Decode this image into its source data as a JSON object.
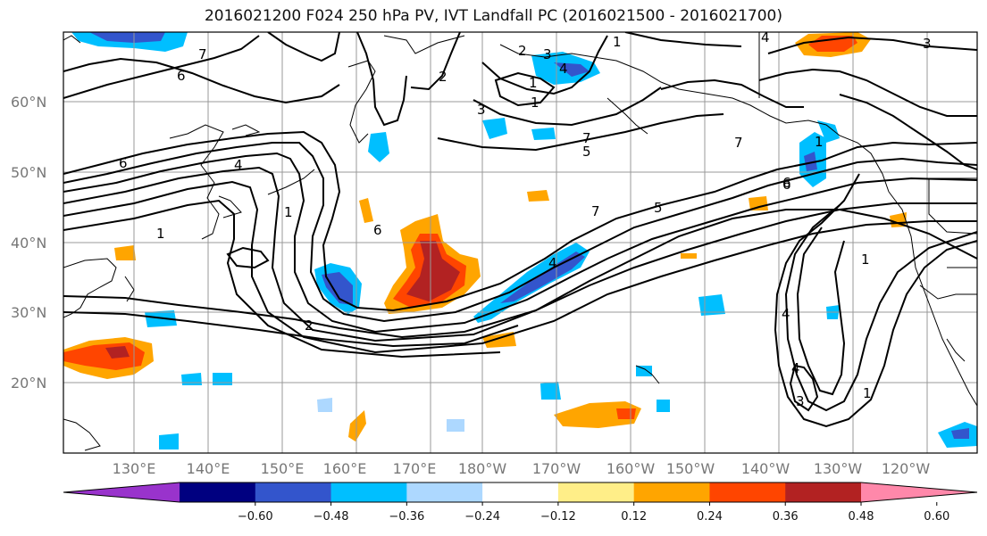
{
  "title": "2016021200 F024 250 hPa PV, IVT Landfall PC (2016021500 - 2016021700)",
  "lat_labels": [
    "60°N",
    "50°N",
    "40°N",
    "30°N",
    "20°N"
  ],
  "lon_labels": [
    "130°E",
    "140°E",
    "150°E",
    "160°E",
    "170°E",
    "180°W",
    "170°W",
    "160°W",
    "150°W",
    "140°W",
    "130°W",
    "120°W"
  ],
  "contour_labels": [
    "7",
    "6",
    "6",
    "4",
    "1",
    "1",
    "6",
    "2",
    "3",
    "2",
    "1",
    "1",
    "7",
    "5",
    "7",
    "6",
    "2",
    "3",
    "4",
    "4",
    "1",
    "4",
    "1",
    "7",
    "5",
    "6",
    "1",
    "4",
    "4",
    "3",
    "1",
    "3"
  ],
  "colorbar": {
    "colors": [
      "#9933cc",
      "#000080",
      "#3355cc",
      "#00bfff",
      "#add8ff",
      "#ffffff",
      "#ffee88",
      "#ffa500",
      "#ff4500",
      "#b22222",
      "#ff88aa"
    ],
    "ticks": [
      "−0.60",
      "−0.48",
      "−0.36",
      "−0.24",
      "−0.12",
      "0.12",
      "0.24",
      "0.36",
      "0.48",
      "0.60"
    ]
  }
}
